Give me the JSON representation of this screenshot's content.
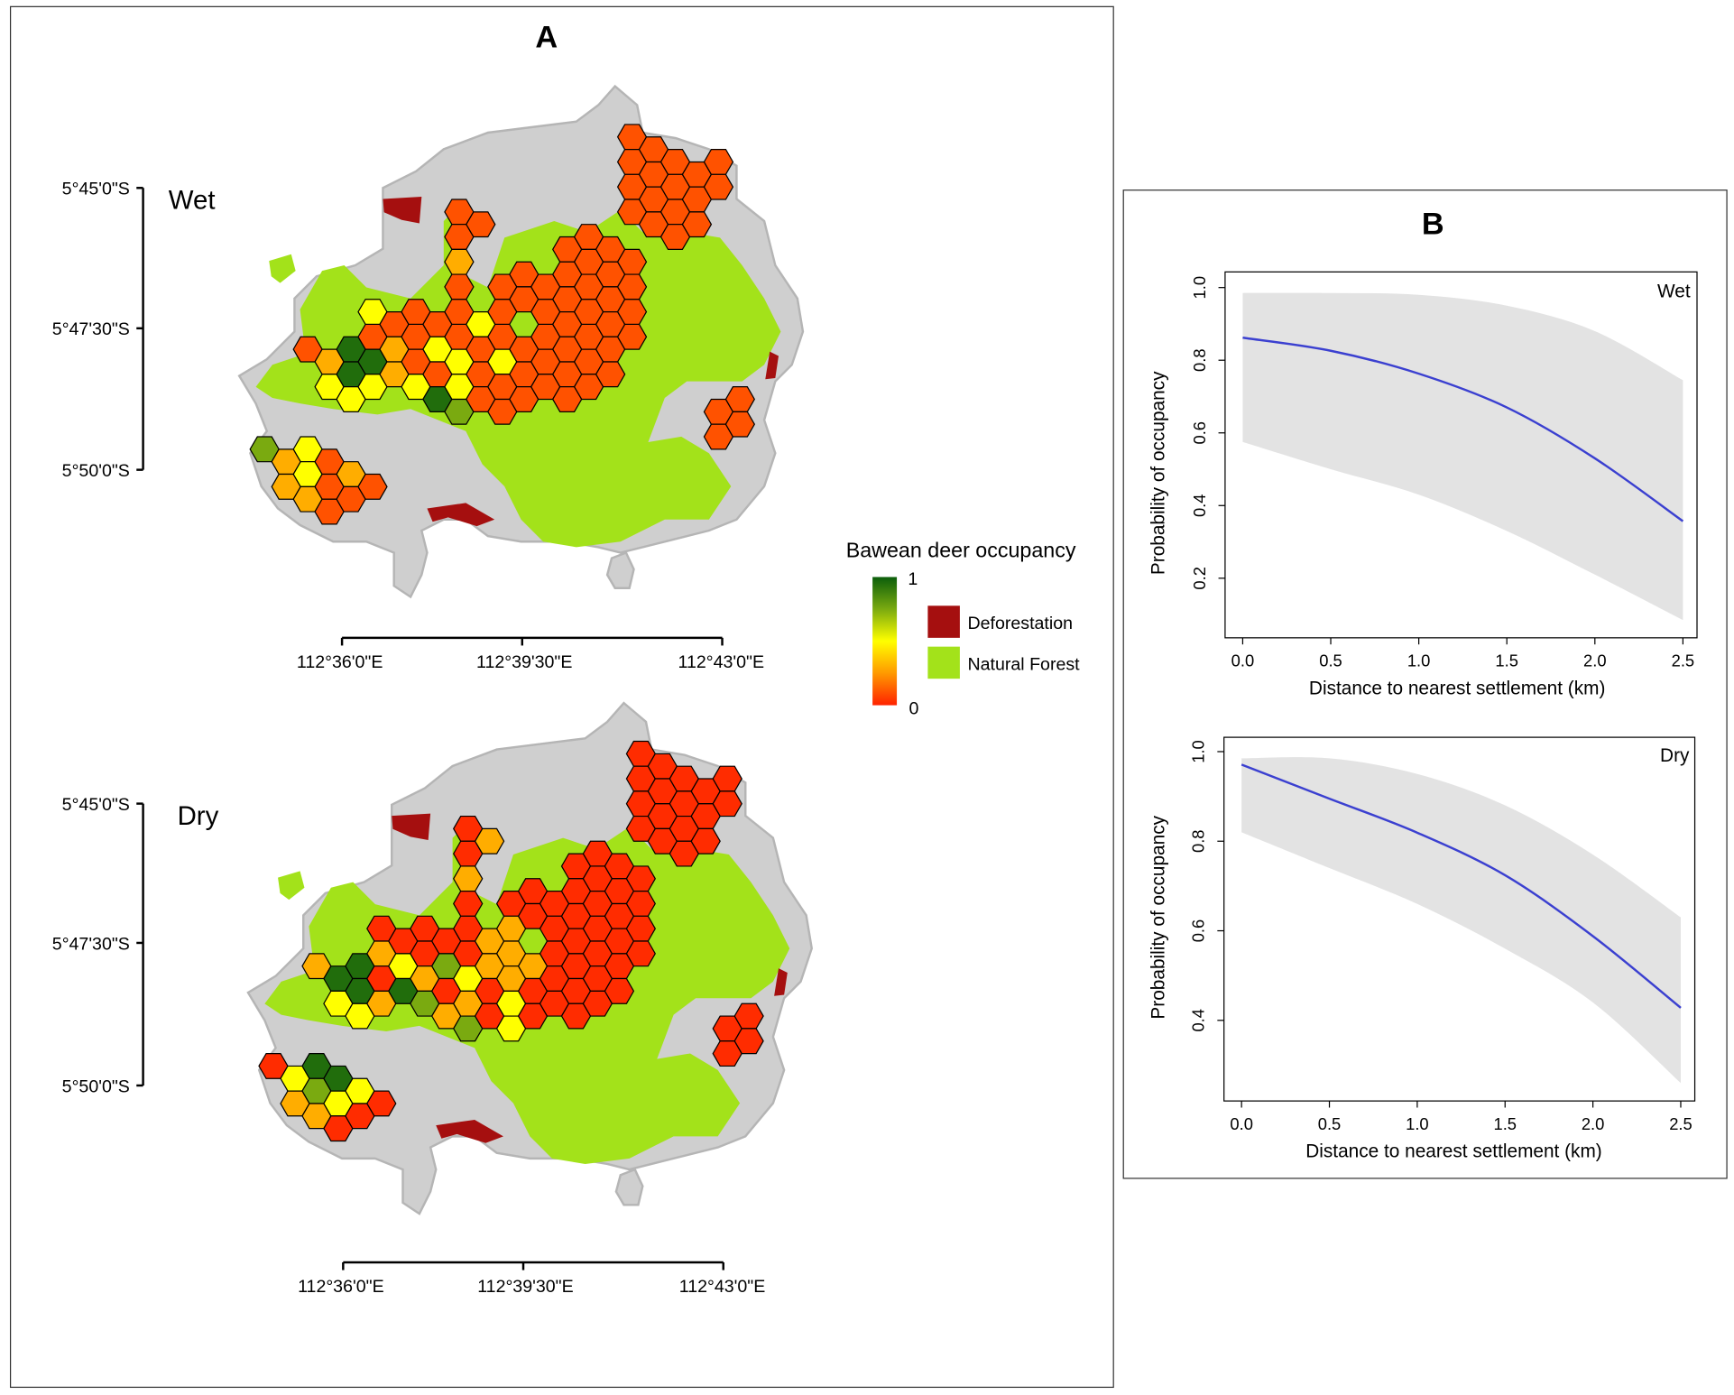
{
  "panel_a": {
    "label": "A",
    "legend": {
      "title": "Bawean deer occupancy",
      "max_label": "1",
      "min_label": "0",
      "deforestation_label": "Deforestation",
      "forest_label": "Natural Forest",
      "deforestation_color": "#a50f0f",
      "forest_color": "#a3e21a",
      "land_color": "#cfcfcf",
      "occupancy_scale": [
        "#ff2200",
        "#ff9900",
        "#ffff00",
        "#7aaa10",
        "#0b5e0b"
      ]
    },
    "maps": [
      {
        "season": "Wet",
        "lat_labels": [
          "5°45'0\"S",
          "5°47'30\"S",
          "5°50'0\"S"
        ],
        "lon_labels": [
          "112°36'0\"E",
          "112°39'30\"E",
          "112°43'0\"E"
        ],
        "occupancy": [
          0.75,
          0.3,
          0.3,
          0.1,
          0.5,
          0.5,
          0.3,
          0.3,
          0.5,
          0.1,
          0.1,
          0.1,
          0.95,
          0.95,
          0.5,
          0.3,
          0.1,
          0.5,
          0.1,
          0.95,
          0.5,
          0.1,
          0.1,
          0.3,
          0.3,
          0.1,
          0.1,
          0.1,
          0.5,
          0.1,
          0.5,
          0.1,
          0.95,
          0.1,
          0.1,
          0.3,
          0.1,
          0.1,
          0.1,
          0.5,
          0.5,
          0.75,
          0.1,
          0.5,
          0.1,
          0.1,
          0.1,
          0.1,
          0.1,
          0.1,
          0.5,
          0.1,
          0.1,
          0.1,
          0.1,
          0.1,
          0.1,
          0.1,
          0.1,
          0.1,
          0.1,
          0.1,
          0.1,
          0.1,
          0.1,
          0.1,
          0.1,
          0.1,
          0.1,
          0.1,
          0.1,
          0.1,
          0.1,
          0.1,
          0.1,
          0.1,
          0.1,
          0.1,
          0.1,
          0.1,
          0.1,
          0.1,
          0.1,
          0.1,
          0.1,
          0.1,
          0.1,
          0.1,
          0.1,
          0.1,
          0.1,
          0.1,
          0.1,
          0.1,
          0.1,
          0.1,
          0.1,
          0.1,
          0.1,
          0.1,
          0.1,
          0.1,
          0.1,
          0.1,
          0.1,
          0.1,
          0.1,
          0.1
        ]
      },
      {
        "season": "Dry",
        "lat_labels": [
          "5°45'0\"S",
          "5°47'30\"S",
          "5°50'0\"S"
        ],
        "lon_labels": [
          "112°36'0\"E",
          "112°39'30\"E",
          "112°43'0\"E"
        ],
        "occupancy": [
          0.02,
          0.5,
          0.3,
          0.3,
          0.95,
          0.75,
          0.3,
          0.95,
          0.5,
          0.95,
          0.5,
          0.02,
          0.95,
          0.95,
          0.5,
          0.5,
          0.02,
          0.02,
          0.3,
          0.02,
          0.3,
          0.02,
          0.02,
          0.5,
          0.95,
          0.02,
          0.02,
          0.3,
          0.75,
          0.02,
          0.75,
          0.02,
          0.3,
          0.02,
          0.02,
          0.3,
          0.02,
          0.02,
          0.02,
          0.5,
          0.3,
          0.75,
          0.3,
          0.3,
          0.3,
          0.02,
          0.02,
          0.02,
          0.3,
          0.3,
          0.3,
          0.5,
          0.5,
          0.02,
          0.02,
          0.3,
          0.02,
          0.02,
          0.02,
          0.02,
          0.02,
          0.02,
          0.02,
          0.02,
          0.02,
          0.02,
          0.02,
          0.02,
          0.02,
          0.02,
          0.02,
          0.02,
          0.02,
          0.02,
          0.02,
          0.02,
          0.02,
          0.02,
          0.02,
          0.02,
          0.02,
          0.02,
          0.02,
          0.02,
          0.02,
          0.02,
          0.02,
          0.02,
          0.02,
          0.02,
          0.02,
          0.02,
          0.02,
          0.02,
          0.02,
          0.02,
          0.02,
          0.02,
          0.02,
          0.02,
          0.02,
          0.02,
          0.02,
          0.02,
          0.02,
          0.02,
          0.02,
          0.02
        ]
      }
    ]
  },
  "panel_b": {
    "label": "B"
  },
  "chart_data": [
    {
      "type": "line",
      "title": "",
      "annotation": "Wet",
      "xlabel": "Distance to nearest settlement (km)",
      "ylabel": "Probability of occupancy",
      "xlim": [
        -0.1,
        2.58
      ],
      "ylim": [
        0.036,
        1.043
      ],
      "xticks": [
        "0.0",
        "0.5",
        "1.0",
        "1.5",
        "2.0",
        "2.5"
      ],
      "yticks": [
        "0.2",
        "0.4",
        "0.6",
        "0.8",
        "1.0"
      ],
      "grid": false,
      "x": [
        0,
        0.5,
        1.0,
        1.5,
        2.0,
        2.5
      ],
      "mean": [
        0.862,
        0.826,
        0.763,
        0.67,
        0.53,
        0.357
      ],
      "upper": [
        0.985,
        0.985,
        0.98,
        0.95,
        0.88,
        0.745
      ],
      "lower": [
        0.575,
        0.5,
        0.43,
        0.33,
        0.21,
        0.085
      ],
      "line_color": "#3b40d0",
      "band_color": "#e3e3e3"
    },
    {
      "type": "line",
      "title": "",
      "annotation": "Dry",
      "xlabel": "Distance to nearest settlement (km)",
      "ylabel": "Probability of occupancy",
      "xlim": [
        -0.1,
        2.58
      ],
      "ylim": [
        0.22,
        1.032
      ],
      "xticks": [
        "0.0",
        "0.5",
        "1.0",
        "1.5",
        "2.0",
        "2.5"
      ],
      "yticks": [
        "0.4",
        "0.6",
        "0.8",
        "1.0"
      ],
      "grid": false,
      "x": [
        0,
        0.5,
        1.0,
        1.5,
        2.0,
        2.5
      ],
      "mean": [
        0.971,
        0.895,
        0.819,
        0.724,
        0.588,
        0.428
      ],
      "upper": [
        0.985,
        0.985,
        0.95,
        0.88,
        0.77,
        0.63
      ],
      "lower": [
        0.82,
        0.74,
        0.66,
        0.56,
        0.44,
        0.26
      ],
      "line_color": "#3b40d0",
      "band_color": "#e3e3e3"
    }
  ]
}
